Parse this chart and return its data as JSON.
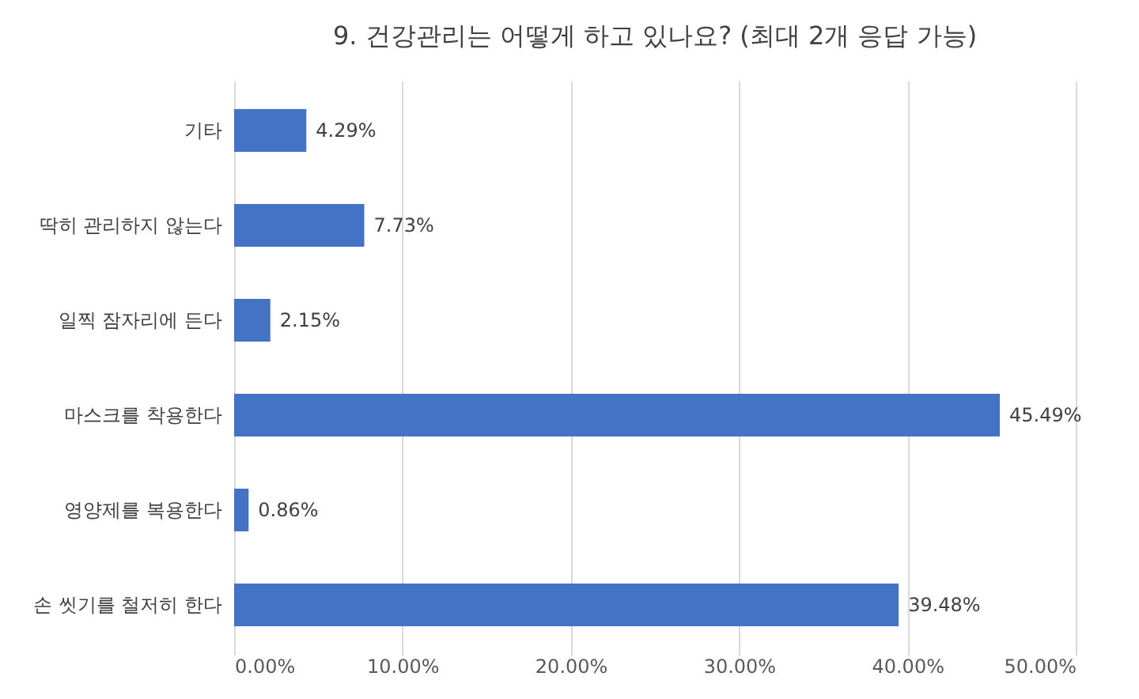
{
  "chart_data": {
    "type": "bar",
    "orientation": "horizontal",
    "title": "9. 건강관리는 어떻게 하고 있나요? (최대 2개 응답 가능)",
    "categories": [
      "기타",
      "딱히 관리하지 않는다",
      "일찍 잠자리에 든다",
      "마스크를 착용한다",
      "영양제를 복용한다",
      "손 씻기를 철저히 한다"
    ],
    "values": [
      4.29,
      7.73,
      2.15,
      45.49,
      0.86,
      39.48
    ],
    "value_labels": [
      "4.29%",
      "7.73%",
      "2.15%",
      "45.49%",
      "0.86%",
      "39.48%"
    ],
    "color": "#4472c4",
    "xlim": [
      0,
      50
    ],
    "xticks": [
      {
        "value": 0,
        "label": "0.00%"
      },
      {
        "value": 10,
        "label": "10.00%"
      },
      {
        "value": 20,
        "label": "20.00%"
      },
      {
        "value": 30,
        "label": "30.00%"
      },
      {
        "value": 40,
        "label": "40.00%"
      },
      {
        "value": 50,
        "label": "50.00%"
      }
    ],
    "grid": "x"
  }
}
